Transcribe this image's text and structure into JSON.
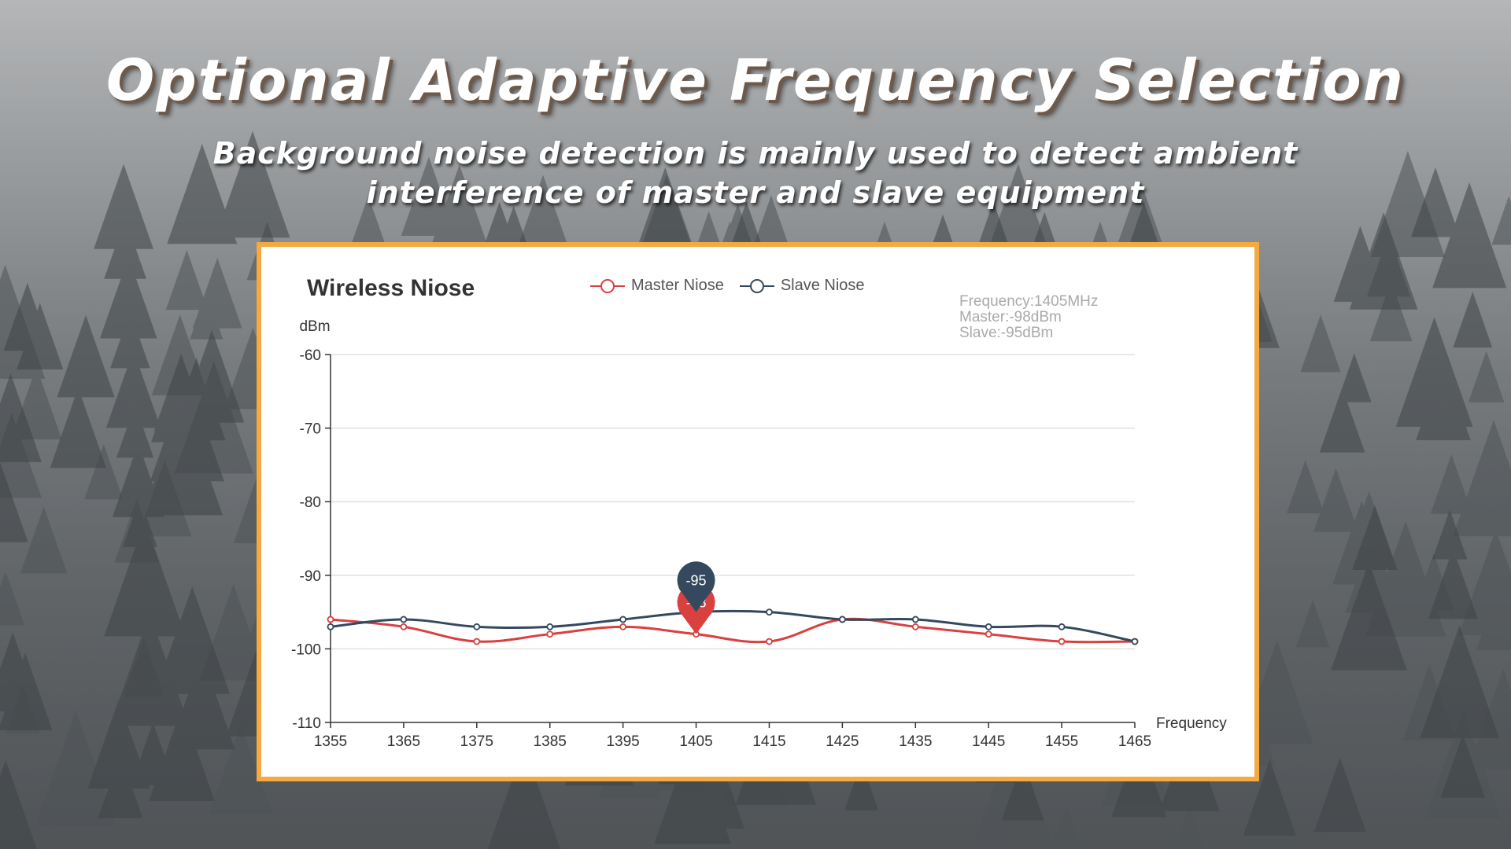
{
  "slide": {
    "headline": "Optional Adaptive Frequency Selection",
    "subline_1": "Background noise detection is mainly used to detect ambient",
    "subline_2": "interference of master and slave equipment"
  },
  "colors": {
    "master": "#d94040",
    "slave": "#34495e",
    "panel_border": "#f5a941"
  },
  "info_box": {
    "frequency": "Frequency:1405MHz",
    "master": "Master:-98dBm",
    "slave": "Slave:-95dBm"
  },
  "chart_data": {
    "type": "line",
    "title": "Wireless Niose",
    "ylabel": "dBm",
    "xlabel": "Frequency",
    "x": [
      1355,
      1365,
      1375,
      1385,
      1395,
      1405,
      1415,
      1425,
      1435,
      1445,
      1455,
      1465
    ],
    "ylim": [
      -110,
      -60
    ],
    "yticks": [
      -60,
      -70,
      -80,
      -90,
      -100,
      -110
    ],
    "grid": true,
    "legend": "top",
    "series": [
      {
        "name": "Master Niose",
        "values": [
          -96,
          -97,
          -99,
          -98,
          -97,
          -98,
          -99,
          -96,
          -97,
          -98,
          -99,
          -99
        ]
      },
      {
        "name": "Slave Niose",
        "values": [
          -97,
          -96,
          -97,
          -97,
          -96,
          -95,
          -95,
          -96,
          -96,
          -97,
          -97,
          -99
        ]
      }
    ],
    "markers": [
      {
        "series": "Master Niose",
        "x": 1405,
        "label": "-98"
      },
      {
        "series": "Slave Niose",
        "x": 1405,
        "label": "-95"
      }
    ]
  }
}
